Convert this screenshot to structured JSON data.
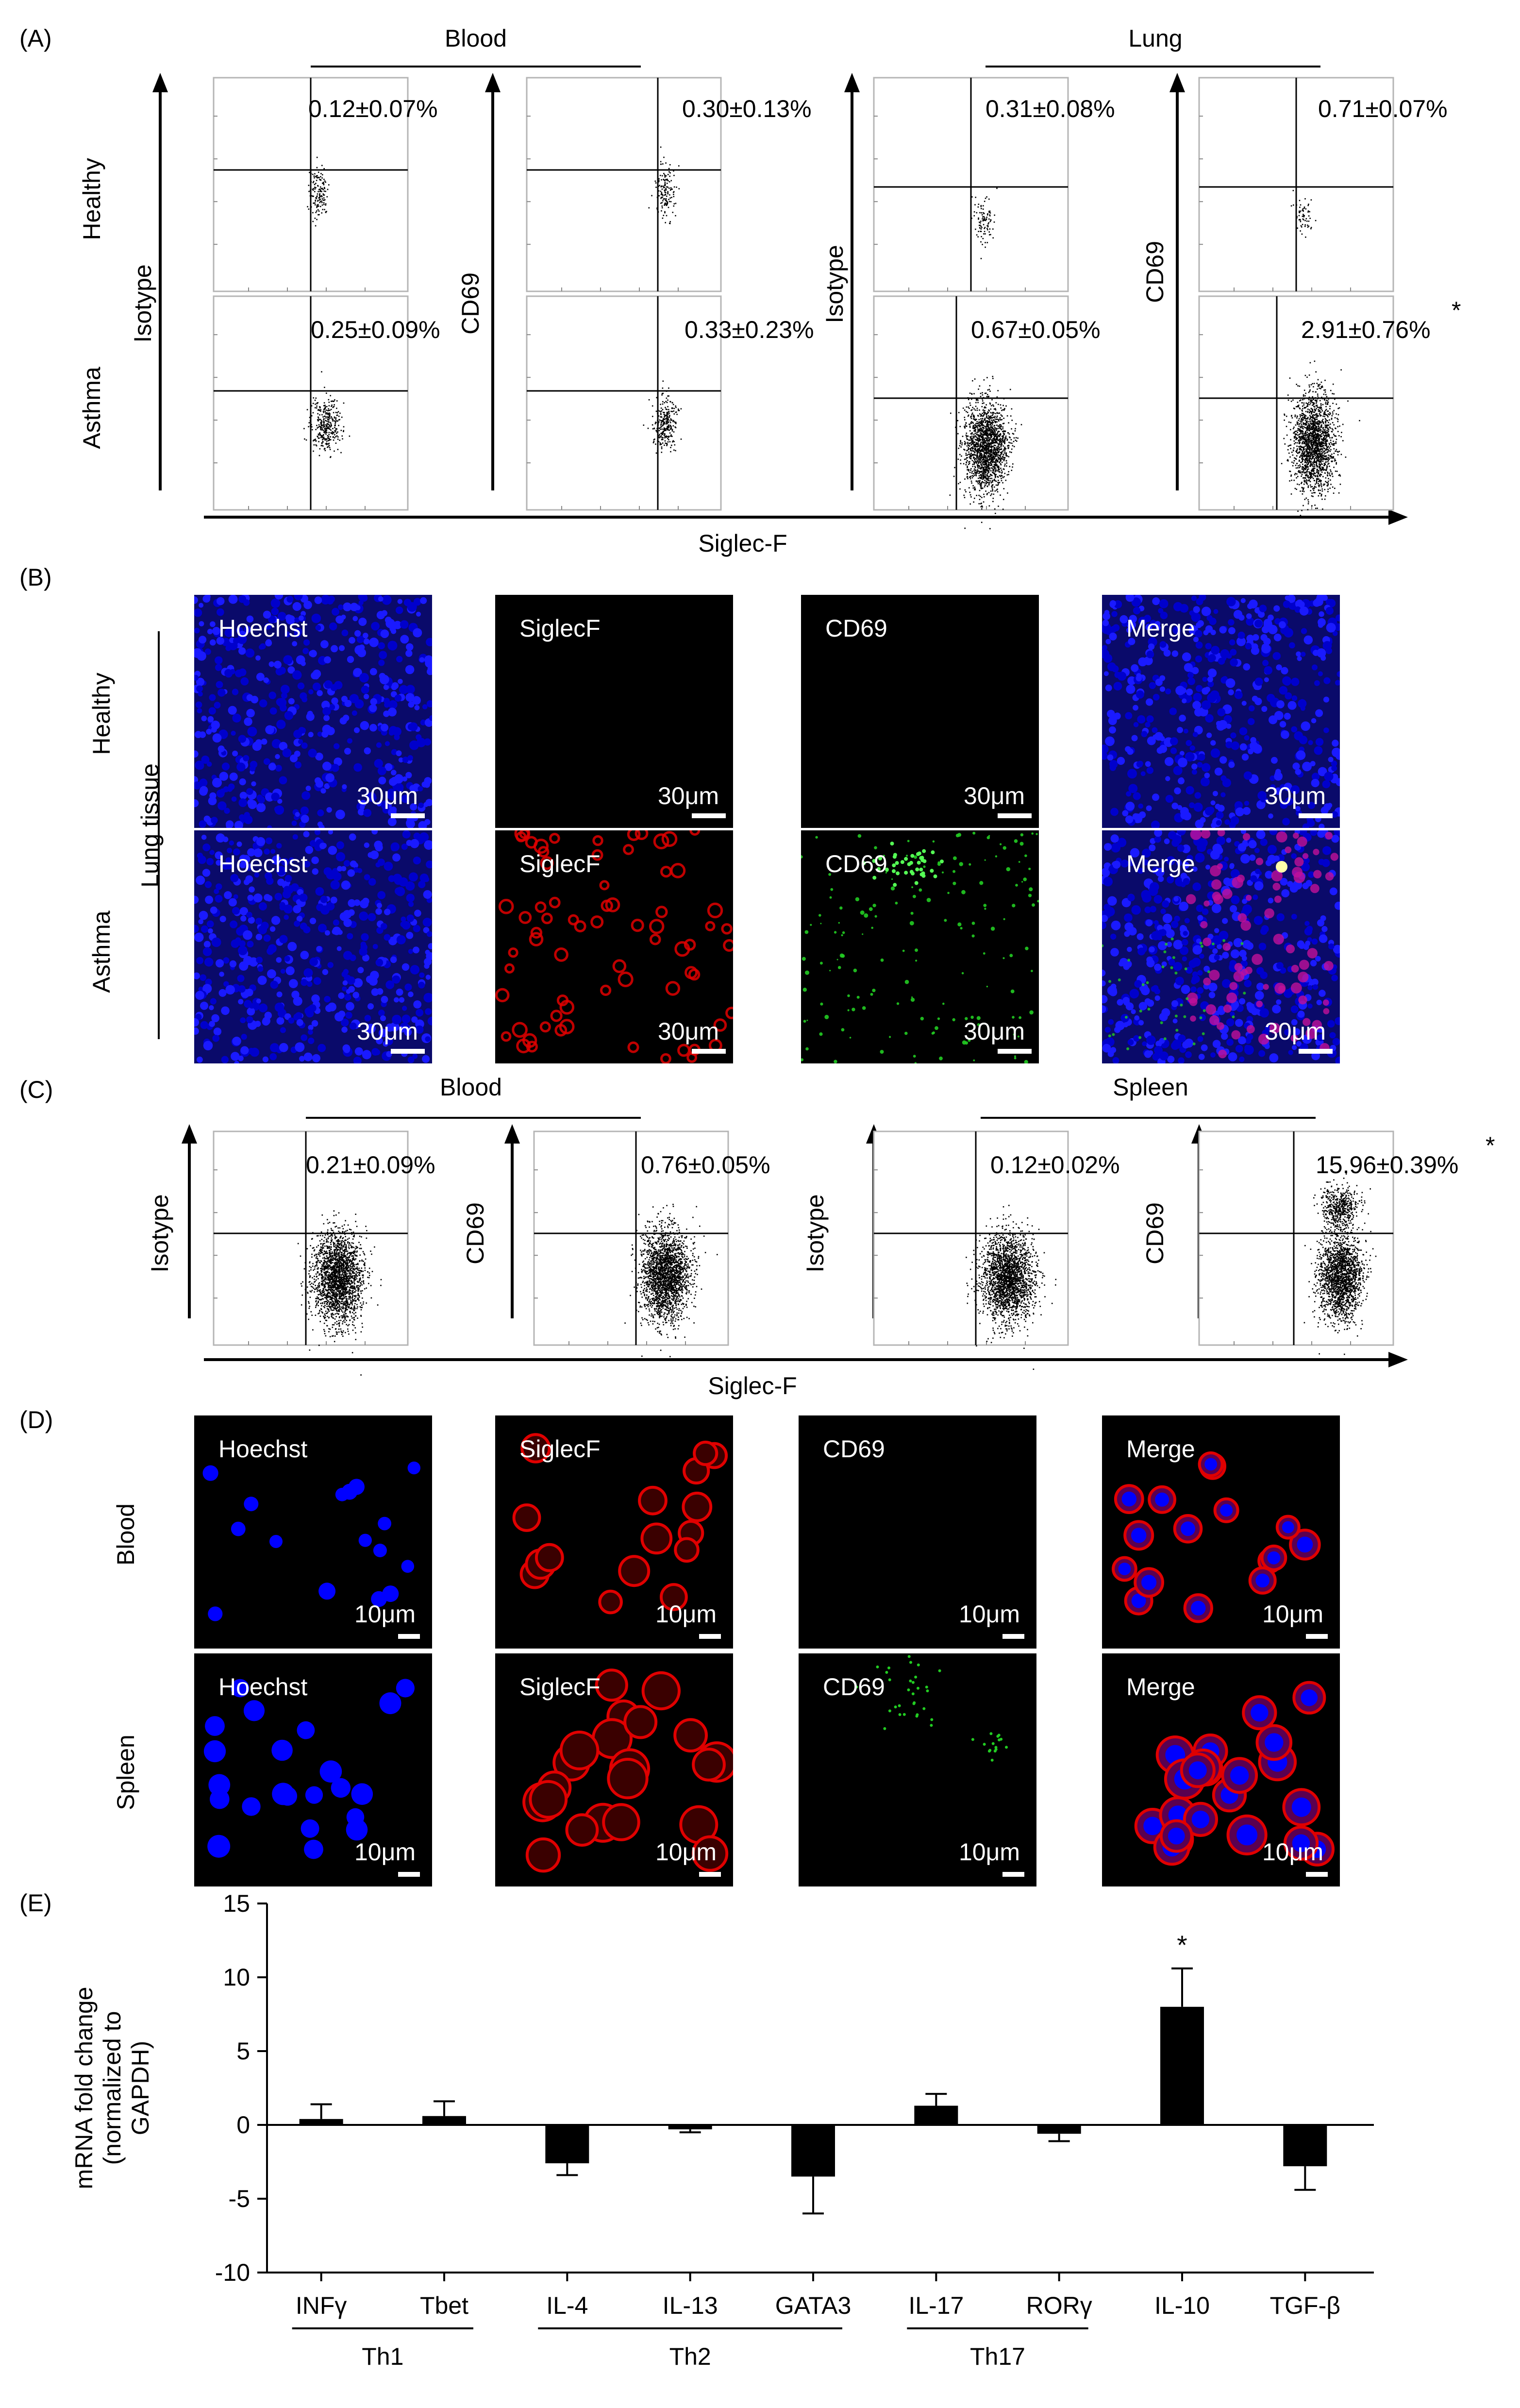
{
  "panels": {
    "A": {
      "label": "(A)",
      "blood_title": "Blood",
      "lung_title": "Lung",
      "row_labels": [
        "Healthy",
        "Asthma"
      ],
      "stain_labels": [
        "Isotype",
        "CD69",
        "Isotype",
        "CD69"
      ],
      "x_axis_label": "Siglec-F",
      "values": [
        [
          "0.12±0.07%",
          "0.30±0.13%",
          "0.31±0.08%",
          "0.71±0.07%"
        ],
        [
          "0.25±0.09%",
          "0.33±0.23%",
          "0.67±0.05%",
          "2.91±0.76%"
        ]
      ],
      "significance": "*"
    },
    "B": {
      "label": "(B)",
      "tissue_label": "Lung tissue",
      "row_labels": [
        "Healthy",
        "Asthma"
      ],
      "channels": [
        "Hoechst",
        "SiglecF",
        "CD69",
        "Merge"
      ],
      "scale": "30μm"
    },
    "C": {
      "label": "(C)",
      "blood_title": "Blood",
      "spleen_title": "Spleen",
      "stain_labels": [
        "Isotype",
        "CD69",
        "Isotype",
        "CD69"
      ],
      "x_axis_label": "Siglec-F",
      "values": [
        "0.21±0.09%",
        "0.76±0.05%",
        "0.12±0.02%",
        "15.96±0.39%"
      ],
      "significance": "*"
    },
    "D": {
      "label": "(D)",
      "row_labels": [
        "Blood",
        "Spleen"
      ],
      "channels": [
        "Hoechst",
        "SiglecF",
        "CD69",
        "Merge"
      ],
      "scale": "10μm"
    },
    "E": {
      "label": "(E)",
      "groups": [
        {
          "name": "Th1"
        },
        {
          "name": "Th2"
        },
        {
          "name": "Th17"
        }
      ]
    }
  },
  "colors": {
    "hoechst": "#0000ff",
    "siglecf": "#e00000",
    "cd69": "#22cc22",
    "background": "#000000"
  },
  "chart_data": {
    "type": "bar",
    "categories": [
      "INFγ",
      "Tbet",
      "IL-4",
      "IL-13",
      "GATA3",
      "IL-17",
      "RORγ",
      "IL-10",
      "TGF-β"
    ],
    "values": [
      0.4,
      0.6,
      -2.6,
      -0.3,
      -3.5,
      1.3,
      -0.6,
      8.0,
      -2.8
    ],
    "errors": [
      1.0,
      1.0,
      0.8,
      0.2,
      2.5,
      0.8,
      0.5,
      2.6,
      1.6
    ],
    "significance": [
      "",
      "",
      "",
      "",
      "",
      "",
      "",
      "*",
      ""
    ],
    "ylabel": "mRNA fold change (normalized to GAPDH)",
    "ylabel_lines": [
      "mRNA fold change",
      "(normalized to",
      "GAPDH)"
    ],
    "ylim": [
      -10,
      15
    ],
    "yticks": [
      15,
      10,
      5,
      0,
      -5,
      -10
    ],
    "group_labels": [
      "Th1",
      "Th2",
      "Th17"
    ],
    "bar_color": "#000000"
  }
}
